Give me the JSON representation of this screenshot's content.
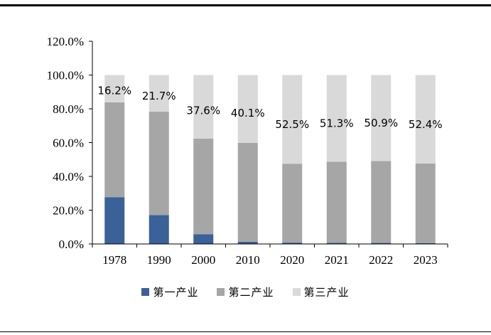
{
  "chart_data": {
    "type": "bar",
    "stacked": true,
    "categories": [
      "1978",
      "1990",
      "2000",
      "2010",
      "2020",
      "2021",
      "2022",
      "2023"
    ],
    "series": [
      {
        "name": "第一产业",
        "color": "#3a6198",
        "values": [
          27.7,
          17.1,
          5.7,
          1.3,
          0.8,
          0.7,
          0.6,
          0.5
        ]
      },
      {
        "name": "第二产业",
        "color": "#a6a6a6",
        "values": [
          56.1,
          61.2,
          56.7,
          58.6,
          46.7,
          48.0,
          48.5,
          47.1
        ]
      },
      {
        "name": "第三产业",
        "color": "#d9d9d9",
        "values": [
          16.2,
          21.7,
          37.6,
          40.1,
          52.5,
          51.3,
          50.9,
          52.4
        ]
      }
    ],
    "data_labels": [
      "16.2%",
      "21.7%",
      "37.6%",
      "40.1%",
      "52.5%",
      "51.3%",
      "50.9%",
      "52.4%"
    ],
    "y_ticks": [
      "0.0%",
      "20.0%",
      "40.0%",
      "60.0%",
      "80.0%",
      "100.0%",
      "120.0%"
    ],
    "ylim": [
      0,
      120
    ],
    "grid": false,
    "legend_position": "bottom"
  }
}
